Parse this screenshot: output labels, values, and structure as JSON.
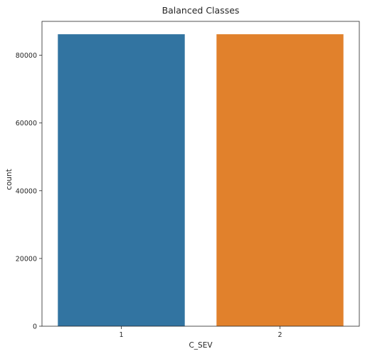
{
  "chart_data": {
    "type": "bar",
    "title": "Balanced Classes",
    "xlabel": "C_SEV",
    "ylabel": "count",
    "categories": [
      "1",
      "2"
    ],
    "values": [
      86200,
      86200
    ],
    "colors": [
      "#3274a1",
      "#e1812c"
    ],
    "ylim": [
      0,
      90000
    ],
    "yticks": [
      0,
      20000,
      40000,
      60000,
      80000
    ],
    "grid": false,
    "legend": "none"
  }
}
